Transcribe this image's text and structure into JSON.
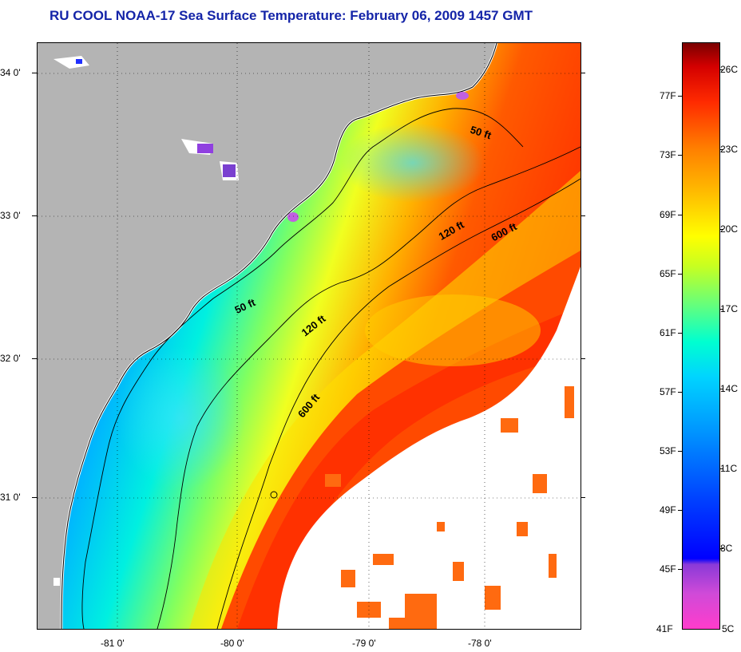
{
  "title": "RU COOL  NOAA-17  Sea Surface Temperature:  February 06, 2009 1457 GMT",
  "map": {
    "latitude_labels": [
      "34 0'",
      "33 0'",
      "32 0'",
      "31 0'"
    ],
    "longitude_labels": [
      "-81 0'",
      "-80 0'",
      "-79 0'",
      "-78 0'"
    ],
    "contour_labels": [
      "50 ft",
      "50 ft",
      "120 ft",
      "120 ft",
      "600 ft",
      "600 ft"
    ],
    "colors": {
      "land": "#b4b4b4",
      "cloud_mask": "#ffffff",
      "coastal_cold": "#1a2cff",
      "shelf": "#00c8ff",
      "mid_shelf": "#e0ff30",
      "gulf_stream": "#ff3a00"
    }
  },
  "colorbar": {
    "fahrenheit_labels": [
      "77F",
      "73F",
      "69F",
      "65F",
      "61F",
      "57F",
      "53F",
      "49F",
      "45F",
      "41F"
    ],
    "celsius_labels": [
      "26C",
      "23C",
      "20C",
      "17C",
      "14C",
      "11C",
      "8C",
      "5C"
    ],
    "range_f": [
      41,
      80
    ],
    "range_c": [
      5,
      26.7
    ]
  }
}
